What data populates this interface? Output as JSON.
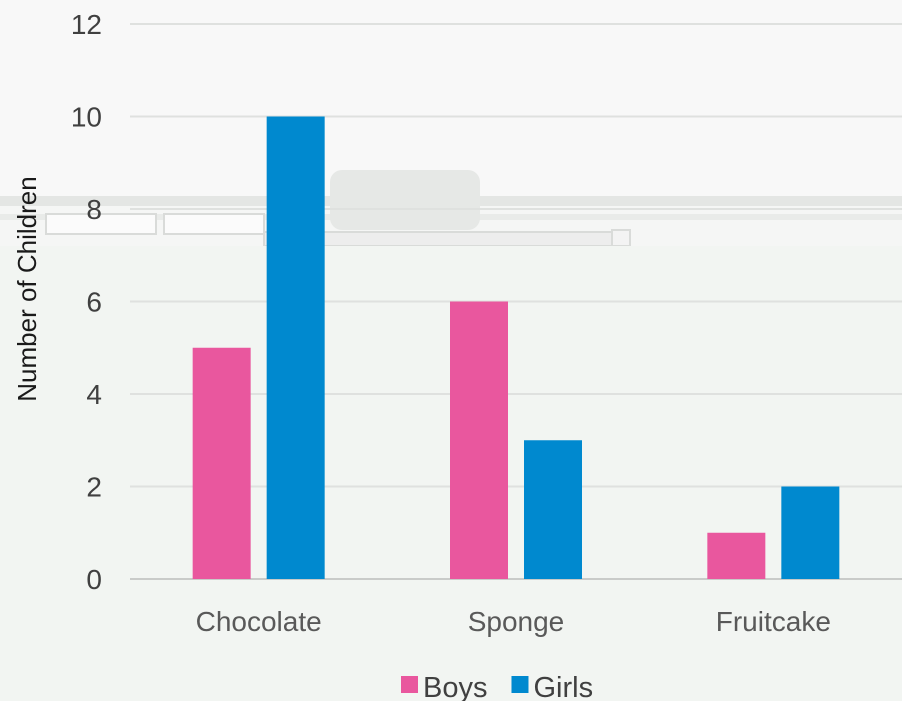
{
  "chart_data": {
    "type": "bar",
    "title": "",
    "xlabel": "",
    "ylabel": "Number of Children",
    "categories": [
      "Chocolate",
      "Sponge",
      "Fruitcake"
    ],
    "series": [
      {
        "name": "Boys",
        "values": [
          5,
          6,
          1
        ],
        "color": "#e9579e"
      },
      {
        "name": "Girls",
        "values": [
          10,
          3,
          2
        ],
        "color": "#0089cf"
      }
    ],
    "ylim": [
      0,
      12
    ],
    "yticks": [
      0,
      2,
      4,
      6,
      8,
      10,
      12
    ],
    "grid": true,
    "legend_position": "bottom"
  }
}
